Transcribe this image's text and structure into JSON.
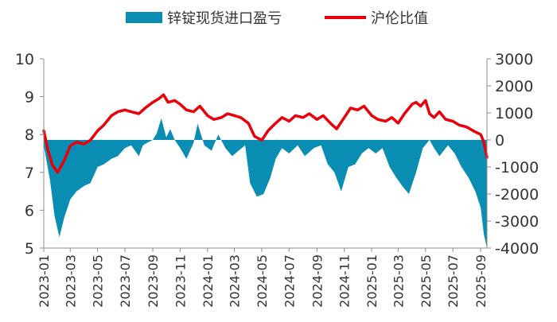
{
  "chart_data": {
    "type": "area+line",
    "legend_position": "top",
    "series": [
      {
        "name": "锌锭现货进口盈亏",
        "axis": "right",
        "kind": "area",
        "color": "#0A8DB3",
        "points": [
          [
            "2023-01-01",
            -200
          ],
          [
            "2023-01-15",
            -1500
          ],
          [
            "2023-01-25",
            -2800
          ],
          [
            "2023-02-05",
            -3600
          ],
          [
            "2023-02-15",
            -2900
          ],
          [
            "2023-03-01",
            -2200
          ],
          [
            "2023-03-15",
            -1900
          ],
          [
            "2023-04-01",
            -1700
          ],
          [
            "2023-04-15",
            -1600
          ],
          [
            "2023-05-01",
            -1000
          ],
          [
            "2023-05-15",
            -900
          ],
          [
            "2023-06-01",
            -700
          ],
          [
            "2023-06-15",
            -600
          ],
          [
            "2023-07-01",
            -300
          ],
          [
            "2023-07-15",
            -200
          ],
          [
            "2023-08-01",
            -600
          ],
          [
            "2023-08-10",
            -200
          ],
          [
            "2023-08-20",
            -100
          ],
          [
            "2023-09-01",
            0
          ],
          [
            "2023-09-10",
            250
          ],
          [
            "2023-09-20",
            800
          ],
          [
            "2023-10-01",
            100
          ],
          [
            "2023-10-10",
            400
          ],
          [
            "2023-10-20",
            0
          ],
          [
            "2023-11-01",
            -300
          ],
          [
            "2023-11-15",
            -700
          ],
          [
            "2023-12-01",
            -100
          ],
          [
            "2023-12-10",
            600
          ],
          [
            "2023-12-25",
            -200
          ],
          [
            "2024-01-10",
            -400
          ],
          [
            "2024-01-25",
            200
          ],
          [
            "2024-02-10",
            -300
          ],
          [
            "2024-02-25",
            -600
          ],
          [
            "2024-03-10",
            -400
          ],
          [
            "2024-03-25",
            -200
          ],
          [
            "2024-04-05",
            -1600
          ],
          [
            "2024-04-20",
            -2100
          ],
          [
            "2024-05-05",
            -2000
          ],
          [
            "2024-05-20",
            -1400
          ],
          [
            "2024-06-01",
            -700
          ],
          [
            "2024-06-15",
            -300
          ],
          [
            "2024-07-01",
            -500
          ],
          [
            "2024-07-20",
            -200
          ],
          [
            "2024-08-05",
            -600
          ],
          [
            "2024-08-25",
            -300
          ],
          [
            "2024-09-10",
            -200
          ],
          [
            "2024-09-25",
            -900
          ],
          [
            "2024-10-10",
            -1200
          ],
          [
            "2024-10-25",
            -1900
          ],
          [
            "2024-11-10",
            -1000
          ],
          [
            "2024-11-25",
            -900
          ],
          [
            "2024-12-10",
            -500
          ],
          [
            "2024-12-25",
            -300
          ],
          [
            "2025-01-10",
            -500
          ],
          [
            "2025-01-25",
            -300
          ],
          [
            "2025-02-10",
            -1000
          ],
          [
            "2025-02-25",
            -1400
          ],
          [
            "2025-03-10",
            -1700
          ],
          [
            "2025-03-25",
            -2000
          ],
          [
            "2025-04-10",
            -1200
          ],
          [
            "2025-04-25",
            -300
          ],
          [
            "2025-05-10",
            0
          ],
          [
            "2025-05-20",
            -300
          ],
          [
            "2025-06-01",
            -600
          ],
          [
            "2025-06-20",
            -200
          ],
          [
            "2025-07-05",
            -500
          ],
          [
            "2025-07-20",
            -1000
          ],
          [
            "2025-08-05",
            -1400
          ],
          [
            "2025-08-20",
            -1900
          ],
          [
            "2025-09-01",
            -2500
          ],
          [
            "2025-09-08",
            -3500
          ],
          [
            "2025-09-15",
            -4000
          ]
        ]
      },
      {
        "name": "沪伦比值",
        "axis": "left",
        "kind": "line",
        "color": "#E8000B",
        "points": [
          [
            "2023-01-01",
            8.1
          ],
          [
            "2023-01-10",
            7.6
          ],
          [
            "2023-01-20",
            7.2
          ],
          [
            "2023-02-01",
            7.0
          ],
          [
            "2023-02-15",
            7.3
          ],
          [
            "2023-03-01",
            7.7
          ],
          [
            "2023-03-15",
            7.8
          ],
          [
            "2023-04-01",
            7.75
          ],
          [
            "2023-04-15",
            7.85
          ],
          [
            "2023-05-01",
            8.1
          ],
          [
            "2023-05-15",
            8.25
          ],
          [
            "2023-06-01",
            8.5
          ],
          [
            "2023-06-15",
            8.6
          ],
          [
            "2023-07-01",
            8.65
          ],
          [
            "2023-07-15",
            8.6
          ],
          [
            "2023-08-01",
            8.55
          ],
          [
            "2023-08-15",
            8.7
          ],
          [
            "2023-09-01",
            8.85
          ],
          [
            "2023-09-15",
            8.95
          ],
          [
            "2023-09-25",
            9.05
          ],
          [
            "2023-10-05",
            8.85
          ],
          [
            "2023-10-20",
            8.9
          ],
          [
            "2023-11-01",
            8.8
          ],
          [
            "2023-11-15",
            8.65
          ],
          [
            "2023-12-01",
            8.6
          ],
          [
            "2023-12-15",
            8.75
          ],
          [
            "2024-01-01",
            8.5
          ],
          [
            "2024-01-15",
            8.4
          ],
          [
            "2024-02-01",
            8.45
          ],
          [
            "2024-02-15",
            8.55
          ],
          [
            "2024-03-01",
            8.5
          ],
          [
            "2024-03-15",
            8.45
          ],
          [
            "2024-04-01",
            8.3
          ],
          [
            "2024-04-15",
            7.95
          ],
          [
            "2024-05-01",
            7.85
          ],
          [
            "2024-05-15",
            8.1
          ],
          [
            "2024-06-01",
            8.3
          ],
          [
            "2024-06-15",
            8.45
          ],
          [
            "2024-07-01",
            8.35
          ],
          [
            "2024-07-15",
            8.5
          ],
          [
            "2024-08-01",
            8.45
          ],
          [
            "2024-08-15",
            8.55
          ],
          [
            "2024-09-01",
            8.4
          ],
          [
            "2024-09-15",
            8.5
          ],
          [
            "2024-10-01",
            8.3
          ],
          [
            "2024-10-15",
            8.15
          ],
          [
            "2024-11-01",
            8.45
          ],
          [
            "2024-11-15",
            8.7
          ],
          [
            "2024-12-01",
            8.65
          ],
          [
            "2024-12-15",
            8.75
          ],
          [
            "2025-01-01",
            8.5
          ],
          [
            "2025-01-15",
            8.4
          ],
          [
            "2025-02-01",
            8.35
          ],
          [
            "2025-02-15",
            8.45
          ],
          [
            "2025-03-01",
            8.3
          ],
          [
            "2025-03-15",
            8.55
          ],
          [
            "2025-04-01",
            8.8
          ],
          [
            "2025-04-10",
            8.85
          ],
          [
            "2025-04-20",
            8.75
          ],
          [
            "2025-05-01",
            8.9
          ],
          [
            "2025-05-10",
            8.55
          ],
          [
            "2025-05-20",
            8.45
          ],
          [
            "2025-06-01",
            8.6
          ],
          [
            "2025-06-15",
            8.4
          ],
          [
            "2025-07-01",
            8.35
          ],
          [
            "2025-07-15",
            8.25
          ],
          [
            "2025-08-01",
            8.2
          ],
          [
            "2025-08-15",
            8.1
          ],
          [
            "2025-09-01",
            8.0
          ],
          [
            "2025-09-08",
            7.8
          ],
          [
            "2025-09-15",
            7.4
          ]
        ]
      }
    ],
    "y_left": {
      "min": 5,
      "max": 10,
      "ticks": [
        5,
        6,
        7,
        8,
        9,
        10
      ]
    },
    "y_right": {
      "min": -4000,
      "max": 3000,
      "ticks": [
        -4000,
        -3000,
        -2000,
        -1000,
        0,
        1000,
        2000,
        3000
      ]
    },
    "x_range": [
      "2023-01-01",
      "2025-09-15"
    ],
    "x_ticks": [
      "2023-01",
      "2023-03",
      "2023-05",
      "2023-07",
      "2023-09",
      "2023-11",
      "2024-01",
      "2024-03",
      "2024-05",
      "2024-07",
      "2024-09",
      "2024-11",
      "2025-01",
      "2025-03",
      "2025-05",
      "2025-07",
      "2025-09"
    ],
    "grid": false
  }
}
